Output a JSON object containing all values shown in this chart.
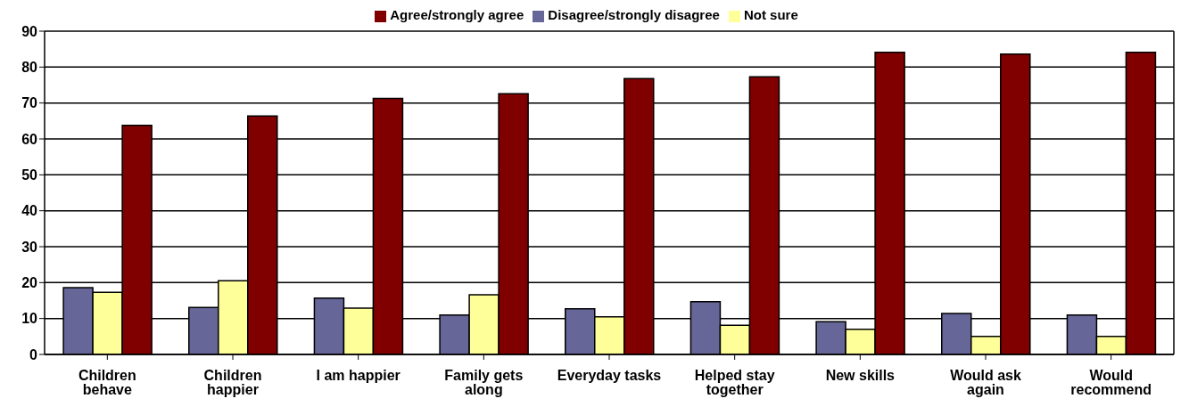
{
  "chart_data": {
    "type": "bar",
    "categories": [
      "Children behave",
      "Children happier",
      "I am happier",
      "Family gets along",
      "Everyday tasks",
      "Helped stay together",
      "New skills",
      "Would ask again",
      "Would recommend"
    ],
    "series": [
      {
        "name": "Disagree/strongly disagree",
        "color": "#666699",
        "values": [
          18.6,
          13.1,
          15.7,
          11,
          12.7,
          14.7,
          9.1,
          11.4,
          11
        ]
      },
      {
        "name": "Not sure",
        "color": "#ffff99",
        "values": [
          17.3,
          20.5,
          12.9,
          16.6,
          10.5,
          8.1,
          7,
          5,
          5
        ]
      },
      {
        "name": "Agree/strongly agree",
        "color": "#800000",
        "values": [
          63.8,
          66.4,
          71.3,
          72.6,
          76.8,
          77.3,
          84.1,
          83.6,
          84.1
        ]
      }
    ],
    "ylim": [
      0,
      90
    ],
    "yticks": [
      0,
      10,
      20,
      30,
      40,
      50,
      60,
      70,
      80,
      90
    ],
    "grid": "y",
    "legend": "top"
  }
}
